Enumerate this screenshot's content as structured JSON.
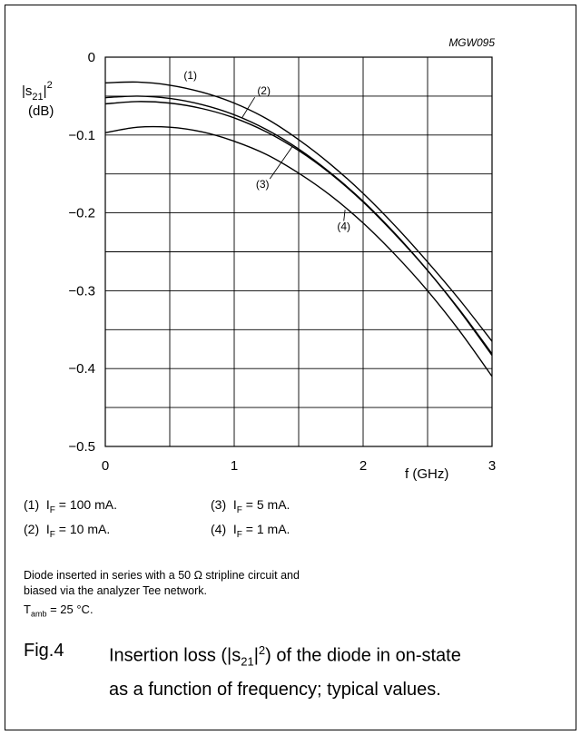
{
  "chart_data": {
    "type": "line",
    "figure_code": "MGW095",
    "title": "",
    "xlabel": "f (GHz)",
    "ylabel_main": "|s21|2",
    "ylabel_unit": "(dB)",
    "xlim": [
      0,
      3
    ],
    "ylim": [
      -0.5,
      0
    ],
    "x_ticks": [
      0,
      1,
      2,
      3
    ],
    "x_tick_labels": [
      "0",
      "1",
      "2",
      "3"
    ],
    "y_ticks": [
      0,
      -0.1,
      -0.2,
      -0.3,
      -0.4,
      -0.5
    ],
    "y_tick_labels": [
      "0",
      "−0.1",
      "−0.2",
      "−0.3",
      "−0.4",
      "−0.5"
    ],
    "grid": true,
    "minor_x_step": 0.5,
    "minor_y_step": 0.05,
    "series": [
      {
        "name": "(1)",
        "x": [
          0,
          0.25,
          0.5,
          0.75,
          1.0,
          1.25,
          1.5,
          1.75,
          2.0,
          2.25,
          2.5,
          2.75,
          3.0
        ],
        "values": [
          -0.033,
          -0.032,
          -0.036,
          -0.045,
          -0.059,
          -0.079,
          -0.106,
          -0.138,
          -0.175,
          -0.217,
          -0.263,
          -0.312,
          -0.365
        ]
      },
      {
        "name": "(2)",
        "x": [
          0,
          0.25,
          0.5,
          0.75,
          1.0,
          1.25,
          1.5,
          1.75,
          2.0,
          2.25,
          2.5,
          2.75,
          3.0
        ],
        "values": [
          -0.052,
          -0.05,
          -0.053,
          -0.061,
          -0.074,
          -0.093,
          -0.118,
          -0.149,
          -0.185,
          -0.227,
          -0.274,
          -0.325,
          -0.381
        ]
      },
      {
        "name": "(3)",
        "x": [
          0,
          0.25,
          0.5,
          0.75,
          1.0,
          1.25,
          1.5,
          1.75,
          2.0,
          2.25,
          2.5,
          2.75,
          3.0
        ],
        "values": [
          -0.06,
          -0.057,
          -0.059,
          -0.066,
          -0.078,
          -0.096,
          -0.12,
          -0.15,
          -0.186,
          -0.228,
          -0.274,
          -0.326,
          -0.383
        ]
      },
      {
        "name": "(4)",
        "x": [
          0,
          0.25,
          0.5,
          0.75,
          1.0,
          1.25,
          1.5,
          1.75,
          2.0,
          2.25,
          2.5,
          2.75,
          3.0
        ],
        "values": [
          -0.097,
          -0.09,
          -0.09,
          -0.096,
          -0.108,
          -0.125,
          -0.149,
          -0.178,
          -0.213,
          -0.254,
          -0.3,
          -0.352,
          -0.41
        ]
      }
    ],
    "curve_labels": [
      {
        "text": "(1)",
        "x": 0.66,
        "y": -0.028,
        "leader": false
      },
      {
        "text": "(2)",
        "x": 1.23,
        "y": -0.048,
        "leader": true,
        "to_x": 1.06,
        "to_y": -0.078
      },
      {
        "text": "(3)",
        "x": 1.22,
        "y": -0.168,
        "leader": true,
        "to_x": 1.45,
        "to_y": -0.115
      },
      {
        "text": "(4)",
        "x": 1.85,
        "y": -0.222,
        "leader": true,
        "to_x": 1.86,
        "to_y": -0.196
      }
    ]
  },
  "legend": [
    {
      "num": "(1)",
      "sym": "I",
      "sub": "F",
      "rest": " = 100 mA."
    },
    {
      "num": "(3)",
      "sym": "I",
      "sub": "F",
      "rest": " = 5 mA."
    },
    {
      "num": "(2)",
      "sym": "I",
      "sub": "F",
      "rest": " = 10 mA."
    },
    {
      "num": "(4)",
      "sym": "I",
      "sub": "F",
      "rest": " = 1 mA."
    }
  ],
  "note": {
    "line1": "Diode inserted in series with a 50 Ω stripline circuit and",
    "line2": "biased via the analyzer Tee network."
  },
  "temperature": {
    "sym": "T",
    "sub": "amb",
    "rest": " = 25 °C."
  },
  "caption": {
    "number": "Fig.4",
    "text_a": "Insertion loss (|s",
    "text_sub": "21",
    "text_b": "|",
    "text_sup": "2",
    "text_c": ") of the diode in on-state",
    "text_line2": "as a function of frequency; typical values."
  }
}
